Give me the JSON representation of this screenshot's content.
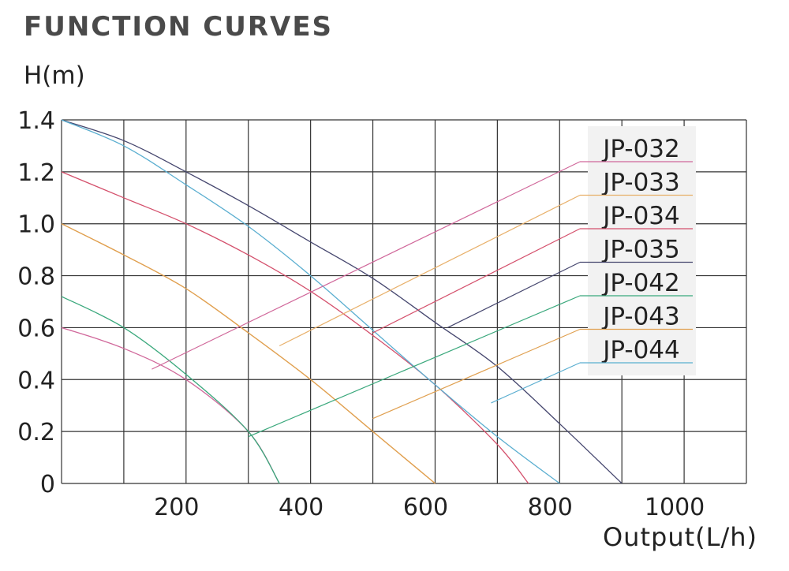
{
  "title": "FUNCTION CURVES",
  "chart_data": {
    "type": "line",
    "title": "FUNCTION CURVES",
    "ylabel": "H(m)",
    "xlabel": "Output(L/h)",
    "xlim": [
      0,
      1100
    ],
    "ylim": [
      0,
      1.4
    ],
    "x_ticks": [
      200,
      400,
      600,
      800,
      1000
    ],
    "x_tick_labels": [
      "200",
      "400",
      "600",
      "800",
      "1000"
    ],
    "y_ticks": [
      0,
      0.2,
      0.4,
      0.6,
      0.8,
      1.0,
      1.2,
      1.4
    ],
    "y_tick_labels": [
      "0",
      "0.2",
      "0.4",
      "0.6",
      "0.8",
      "1.0",
      "1.2",
      "1.4"
    ],
    "grid": true,
    "legend_position": "top-right",
    "series": [
      {
        "name": "JP-032",
        "color": "#d0679a",
        "points": [
          [
            0,
            0.6
          ],
          [
            100,
            0.52
          ],
          [
            200,
            0.4
          ],
          [
            300,
            0.2
          ],
          [
            350,
            0
          ]
        ]
      },
      {
        "name": "JP-033",
        "color": "#e8b06a",
        "points": [
          [
            0,
            1.0
          ],
          [
            100,
            0.88
          ],
          [
            200,
            0.75
          ],
          [
            300,
            0.58
          ],
          [
            400,
            0.4
          ],
          [
            500,
            0.2
          ],
          [
            600,
            0
          ]
        ]
      },
      {
        "name": "JP-034",
        "color": "#d4506c",
        "points": [
          [
            0,
            1.2
          ],
          [
            100,
            1.1
          ],
          [
            200,
            1.0
          ],
          [
            300,
            0.88
          ],
          [
            400,
            0.74
          ],
          [
            500,
            0.57
          ],
          [
            600,
            0.38
          ],
          [
            700,
            0.15
          ],
          [
            750,
            0
          ]
        ]
      },
      {
        "name": "JP-035",
        "color": "#45466e",
        "points": [
          [
            0,
            1.4
          ],
          [
            100,
            1.32
          ],
          [
            200,
            1.2
          ],
          [
            300,
            1.07
          ],
          [
            400,
            0.93
          ],
          [
            500,
            0.79
          ],
          [
            600,
            0.62
          ],
          [
            700,
            0.45
          ],
          [
            800,
            0.23
          ],
          [
            900,
            0
          ]
        ]
      },
      {
        "name": "JP-042",
        "color": "#3aa87c",
        "points": [
          [
            0,
            0.72
          ],
          [
            100,
            0.6
          ],
          [
            200,
            0.42
          ],
          [
            300,
            0.2
          ],
          [
            350,
            0
          ]
        ]
      },
      {
        "name": "JP-043",
        "color": "#e0a050",
        "points": [
          [
            0,
            1.0
          ],
          [
            100,
            0.88
          ],
          [
            200,
            0.75
          ],
          [
            300,
            0.58
          ],
          [
            400,
            0.4
          ],
          [
            500,
            0.2
          ],
          [
            600,
            0
          ]
        ]
      },
      {
        "name": "JP-044",
        "color": "#5aaed0",
        "points": [
          [
            0,
            1.4
          ],
          [
            100,
            1.3
          ],
          [
            200,
            1.15
          ],
          [
            300,
            0.99
          ],
          [
            400,
            0.8
          ],
          [
            500,
            0.59
          ],
          [
            600,
            0.38
          ],
          [
            700,
            0.18
          ],
          [
            800,
            0
          ]
        ]
      }
    ]
  }
}
